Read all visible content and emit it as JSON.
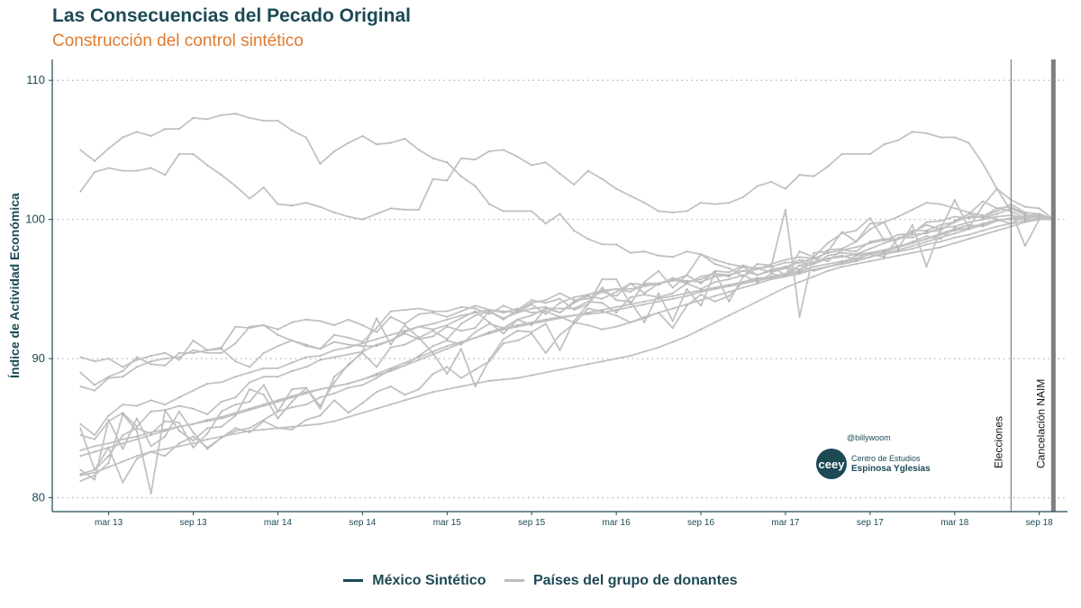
{
  "title": "Las Consecuencias del Pecado Original",
  "subtitle": "Construcción del control sintético",
  "handle": "@billywoom",
  "logo": {
    "mark": "ceey",
    "line1": "Centro de Estudios",
    "line2": "Espinosa Yglesias"
  },
  "legend": [
    {
      "label": "México Sintético",
      "color": "#1c4a55"
    },
    {
      "label": "Países del grupo de donantes",
      "color": "#bdbdbd"
    }
  ],
  "chart_data": {
    "type": "line",
    "ylabel": "Índice de Actividad Económica",
    "xlabel": "",
    "ylim": [
      79,
      111.5
    ],
    "yticks": [
      80,
      90,
      100,
      110
    ],
    "xrange": [
      "2012-11",
      "2018-11"
    ],
    "xticks": [
      "mar 13",
      "sep 13",
      "mar 14",
      "sep 14",
      "mar 15",
      "sep 15",
      "mar 16",
      "sep 16",
      "mar 17",
      "sep 17",
      "mar 18",
      "sep 18"
    ],
    "grid": "horizontal-dotted",
    "legend_position": "bottom",
    "x_start": "2013-01",
    "vlines": [
      {
        "label": "Elecciones",
        "x": "2018-07",
        "color": "#888888",
        "weight": "thin"
      },
      {
        "label": "Cancelación NAIM",
        "x": "2018-10",
        "color": "#7f7f7f",
        "weight": "thick"
      }
    ],
    "series": [
      {
        "group": "donor",
        "values": [
          105.0,
          104.2,
          105.1,
          105.9,
          106.3,
          106.0,
          106.5,
          106.5,
          107.3,
          107.2,
          107.5,
          107.6,
          107.3,
          107.1,
          107.1,
          106.4,
          105.9,
          104.0,
          104.9,
          105.5,
          106.0,
          105.4,
          105.5,
          105.8,
          105.0,
          104.4,
          104.1,
          103.1,
          102.4,
          101.1,
          100.6,
          100.6,
          100.6,
          99.7,
          100.4,
          99.2,
          98.6,
          98.2,
          98.2,
          97.6,
          97.7,
          97.4,
          97.3,
          97.7,
          97.5,
          97.1,
          96.8,
          96.6,
          96.5,
          96.2,
          96.5,
          97.1,
          96.9,
          97.8,
          97.9,
          98.4,
          99.3,
          99.8,
          100.2,
          100.7,
          101.2,
          101.1,
          100.8,
          100.5,
          100.3,
          100.0,
          100.0,
          100.0,
          100.0,
          100.0
        ]
      },
      {
        "group": "donor",
        "values": [
          102.0,
          103.4,
          103.7,
          103.5,
          103.5,
          103.7,
          103.2,
          104.7,
          104.7,
          103.9,
          103.2,
          102.4,
          101.5,
          102.3,
          101.1,
          101.0,
          101.2,
          100.9,
          100.5,
          100.2,
          100.0,
          100.4,
          100.8,
          100.7,
          100.7,
          102.9,
          102.8,
          104.4,
          104.3,
          104.9,
          105.0,
          104.5,
          103.9,
          104.1,
          103.3,
          102.5,
          103.5,
          102.9,
          102.2,
          101.7,
          101.2,
          100.6,
          100.5,
          100.6,
          101.2,
          101.1,
          101.2,
          101.6,
          102.4,
          102.7,
          102.2,
          103.2,
          103.1,
          103.8,
          104.7,
          104.7,
          104.7,
          105.4,
          105.7,
          106.3,
          106.2,
          105.9,
          105.9,
          105.5,
          104.0,
          102.2,
          101.4,
          100.9,
          100.8,
          100.0
        ]
      },
      {
        "group": "donor",
        "values": [
          90.1,
          89.8,
          90.0,
          89.4,
          89.9,
          90.2,
          90.4,
          89.9,
          91.3,
          90.6,
          90.8,
          92.3,
          92.2,
          92.4,
          92.1,
          92.6,
          92.8,
          92.7,
          92.4,
          92.8,
          92.4,
          91.9,
          93.0,
          92.5,
          93.2,
          93.3,
          93.0,
          93.4,
          93.8,
          93.5,
          93.4,
          93.3,
          93.9,
          93.2,
          94.0,
          94.4,
          94.6,
          94.9,
          95.0,
          95.0,
          95.2,
          95.4,
          95.6,
          95.6,
          95.5,
          95.9,
          96.0,
          96.3,
          96.0,
          96.3,
          96.5,
          96.4,
          96.9,
          97.2,
          97.3,
          97.5,
          97.6,
          97.8,
          98.1,
          98.3,
          98.6,
          99.0,
          99.3,
          99.6,
          99.5,
          99.9,
          100.1,
          100.2,
          100.4,
          100.0
        ]
      },
      {
        "group": "donor",
        "values": [
          88.0,
          87.7,
          88.6,
          88.7,
          89.4,
          89.8,
          90.0,
          90.1,
          90.6,
          90.4,
          90.4,
          91.1,
          92.3,
          92.4,
          91.7,
          91.3,
          91.0,
          90.7,
          91.7,
          91.5,
          91.2,
          92.2,
          93.4,
          93.5,
          93.6,
          93.4,
          93.4,
          93.7,
          93.6,
          93.2,
          93.8,
          93.4,
          94.0,
          94.2,
          94.7,
          94.2,
          94.3,
          94.8,
          95.0,
          94.8,
          95.4,
          95.4,
          95.7,
          95.4,
          95.9,
          96.1,
          96.0,
          96.3,
          96.5,
          96.6,
          96.9,
          96.9,
          97.2,
          97.0,
          97.8,
          97.7,
          98.4,
          98.6,
          98.6,
          99.1,
          99.6,
          99.3,
          99.8,
          100.4,
          100.1,
          100.4,
          100.8,
          100.3,
          100.3,
          100.0
        ]
      },
      {
        "group": "donor",
        "values": [
          89.0,
          88.1,
          88.7,
          89.1,
          90.1,
          89.6,
          89.5,
          90.4,
          90.4,
          90.6,
          90.7,
          89.8,
          89.4,
          90.4,
          90.9,
          91.3,
          90.9,
          90.7,
          91.2,
          91.0,
          90.9,
          90.9,
          91.3,
          91.8,
          91.4,
          91.6,
          92.3,
          92.0,
          92.2,
          93.4,
          92.9,
          93.3,
          93.6,
          93.7,
          93.3,
          94.1,
          94.6,
          94.8,
          94.5,
          95.4,
          95.3,
          95.3,
          95.8,
          95.5,
          95.7,
          96.1,
          95.9,
          96.6,
          96.0,
          96.4,
          96.6,
          96.9,
          96.8,
          97.4,
          97.6,
          97.5,
          97.9,
          98.3,
          98.6,
          98.9,
          99.0,
          99.4,
          99.5,
          99.8,
          100.0,
          100.2,
          100.3,
          100.1,
          100.2,
          100.0
        ]
      },
      {
        "group": "donor",
        "values": [
          85.3,
          84.5,
          85.9,
          86.7,
          86.6,
          87.0,
          86.7,
          87.2,
          87.7,
          88.2,
          88.3,
          88.7,
          89.0,
          89.3,
          89.3,
          89.7,
          90.1,
          90.2,
          90.6,
          90.8,
          91.1,
          91.4,
          91.7,
          92.0,
          92.3,
          92.5,
          92.8,
          93.1,
          93.3,
          93.5,
          93.3,
          93.6,
          93.3,
          93.4,
          93.0,
          92.6,
          92.4,
          92.1,
          92.3,
          92.6,
          92.9,
          93.3,
          93.6,
          93.9,
          94.2,
          94.5,
          94.8,
          95.1,
          95.4,
          95.7,
          95.9,
          96.1,
          96.4,
          96.6,
          96.8,
          97.0,
          97.3,
          97.5,
          97.7,
          97.9,
          98.2,
          98.4,
          98.7,
          98.9,
          99.2,
          99.5,
          99.7,
          99.9,
          100.1,
          100.0
        ]
      },
      {
        "group": "donor",
        "values": [
          84.5,
          84.2,
          85.5,
          86.1,
          85.1,
          86.2,
          86.3,
          86.6,
          86.4,
          86.0,
          86.9,
          87.2,
          88.3,
          88.7,
          88.7,
          89.1,
          89.4,
          89.9,
          90.1,
          90.3,
          90.5,
          91.0,
          91.3,
          91.9,
          92.3,
          92.1,
          92.4,
          92.9,
          93.4,
          92.6,
          91.8,
          92.8,
          92.4,
          93.6,
          93.6,
          93.6,
          94.1,
          94.0,
          93.3,
          94.4,
          94.6,
          94.4,
          94.7,
          95.4,
          95.0,
          95.5,
          95.7,
          96.0,
          95.5,
          96.1,
          95.9,
          96.7,
          96.8,
          97.2,
          97.4,
          97.1,
          97.6,
          97.8,
          98.0,
          98.4,
          98.8,
          98.6,
          99.4,
          99.3,
          99.7,
          100.0,
          99.7,
          100.3,
          100.2,
          100.0
        ]
      },
      {
        "group": "donor",
        "values": [
          83.4,
          83.7,
          83.9,
          84.2,
          84.4,
          84.7,
          84.9,
          85.1,
          85.3,
          85.6,
          85.8,
          86.1,
          86.4,
          86.7,
          87.0,
          87.3,
          87.6,
          87.8,
          88.0,
          88.2,
          88.5,
          88.8,
          89.1,
          89.5,
          89.9,
          90.3,
          90.7,
          91.1,
          91.5,
          91.9,
          92.2,
          92.4,
          92.6,
          92.8,
          93.0,
          93.1,
          93.2,
          93.3,
          93.5,
          93.7,
          93.9,
          94.1,
          94.3,
          94.5,
          94.8,
          95.0,
          95.2,
          95.4,
          95.6,
          95.8,
          96.0,
          96.2,
          96.4,
          96.6,
          96.9,
          97.1,
          97.3,
          97.6,
          97.8,
          98.1,
          98.4,
          98.7,
          99.0,
          99.3,
          99.6,
          99.9,
          100.1,
          100.0,
          100.0,
          100.0
        ]
      },
      {
        "group": "donor",
        "values": [
          83.0,
          83.3,
          83.6,
          83.9,
          84.2,
          84.5,
          84.8,
          85.1,
          85.3,
          85.5,
          85.7,
          86.0,
          86.3,
          86.6,
          86.9,
          87.2,
          87.5,
          87.8,
          88.0,
          88.2,
          88.5,
          88.9,
          89.3,
          89.7,
          90.1,
          90.5,
          90.9,
          91.2,
          91.5,
          91.8,
          92.1,
          92.3,
          92.5,
          92.7,
          92.9,
          93.1,
          93.3,
          93.5,
          93.7,
          93.9,
          94.1,
          94.3,
          94.5,
          94.7,
          94.9,
          95.1,
          95.3,
          95.5,
          95.7,
          95.9,
          96.1,
          96.3,
          96.6,
          96.8,
          97.0,
          97.2,
          97.5,
          97.7,
          98.0,
          98.3,
          98.6,
          98.9,
          99.2,
          99.4,
          99.7,
          99.9,
          100.1,
          100.0,
          100.0,
          100.0
        ]
      },
      {
        "group": "donor",
        "values": [
          81.7,
          82.0,
          83.6,
          81.1,
          82.8,
          83.3,
          83.0,
          83.9,
          84.4,
          83.6,
          84.3,
          84.8,
          85.0,
          85.6,
          86.2,
          86.5,
          86.7,
          87.2,
          87.5,
          87.9,
          88.1,
          88.6,
          89.2,
          89.5,
          90.2,
          90.9,
          91.3,
          91.0,
          91.9,
          92.5,
          92.2,
          92.8,
          93.1,
          93.6,
          93.3,
          94.0,
          94.5,
          94.3,
          94.8,
          95.4,
          94.7,
          95.4,
          95.6,
          96.0,
          95.4,
          96.3,
          96.2,
          96.7,
          96.4,
          96.8,
          97.1,
          97.3,
          97.2,
          97.6,
          97.8,
          98.0,
          98.3,
          98.5,
          98.6,
          99.2,
          99.2,
          99.6,
          99.8,
          100.2,
          100.2,
          100.8,
          100.6,
          100.1,
          100.4,
          100.0
        ]
      },
      {
        "group": "donor",
        "values": [
          81.2,
          81.6,
          82.5,
          86.0,
          84.8,
          80.3,
          86.3,
          84.8,
          84.1,
          85.0,
          85.1,
          85.9,
          87.8,
          87.4,
          85.7,
          86.9,
          87.9,
          86.4,
          88.7,
          89.5,
          90.5,
          92.9,
          91.0,
          92.4,
          91.5,
          90.4,
          88.9,
          90.7,
          88.0,
          89.9,
          91.4,
          92.0,
          91.9,
          92.5,
          90.6,
          92.7,
          93.9,
          95.1,
          94.2,
          94.1,
          92.6,
          94.7,
          92.7,
          95.0,
          93.8,
          96.2,
          94.1,
          95.9,
          96.8,
          96.7,
          100.7,
          93.0,
          97.6,
          97.7,
          99.1,
          98.4,
          99.7,
          99.8,
          97.9,
          99.6,
          96.6,
          99.3,
          101.4,
          99.4,
          101.0,
          102.2,
          100.6,
          98.1,
          100.0,
          100.0
        ]
      },
      {
        "group": "donor",
        "values": [
          82.0,
          81.3,
          85.6,
          83.5,
          85.7,
          83.7,
          84.4,
          86.2,
          84.7,
          83.5,
          84.3,
          85.0,
          84.7,
          85.5,
          85.0,
          84.9,
          85.6,
          85.9,
          87.0,
          86.1,
          86.8,
          87.6,
          88.0,
          87.4,
          87.8,
          88.9,
          89.4,
          88.6,
          89.2,
          89.8,
          91.1,
          91.3,
          91.8,
          90.4,
          91.7,
          92.5,
          93.6,
          93.4,
          93.1,
          92.6,
          93.0,
          93.3,
          92.2,
          93.8,
          94.6,
          94.1,
          94.5,
          95.5,
          95.8,
          95.8,
          96.1,
          96.7,
          96.3,
          96.6,
          96.8,
          97.4,
          97.5,
          97.3,
          98.7,
          98.7,
          99.1,
          99.2,
          99.9,
          100.4,
          101.3,
          100.8,
          100.9,
          100.4,
          100.0,
          100.0
        ]
      },
      {
        "group": "donor",
        "values": [
          81.6,
          81.8,
          82.2,
          82.6,
          83.0,
          83.3,
          83.5,
          83.7,
          83.9,
          84.2,
          84.4,
          84.6,
          84.8,
          84.9,
          85.0,
          85.1,
          85.2,
          85.3,
          85.5,
          85.8,
          86.1,
          86.4,
          86.7,
          87.0,
          87.3,
          87.6,
          87.8,
          88.0,
          88.2,
          88.4,
          88.5,
          88.6,
          88.8,
          89.0,
          89.2,
          89.4,
          89.6,
          89.8,
          90.0,
          90.2,
          90.5,
          90.8,
          91.2,
          91.6,
          92.1,
          92.6,
          93.1,
          93.6,
          94.1,
          94.6,
          95.1,
          95.5,
          95.9,
          96.3,
          96.6,
          96.8,
          97.0,
          97.2,
          97.4,
          97.6,
          97.8,
          98.0,
          98.3,
          98.6,
          98.9,
          99.2,
          99.5,
          99.8,
          100.0,
          100.0
        ]
      },
      {
        "group": "donor",
        "values": [
          85.0,
          82.0,
          83.0,
          84.5,
          85.0,
          84.6,
          85.5,
          85.4,
          83.6,
          84.6,
          86.2,
          86.7,
          86.9,
          88.1,
          86.2,
          87.8,
          87.9,
          86.6,
          88.3,
          89.6,
          90.4,
          89.4,
          90.8,
          91.0,
          91.5,
          92.0,
          91.4,
          92.5,
          93.1,
          93.4,
          92.8,
          93.5,
          94.2,
          94.0,
          94.3,
          93.5,
          93.9,
          95.7,
          95.7,
          93.9,
          95.5,
          96.3,
          95.1,
          96.0,
          97.5,
          96.8,
          96.5,
          95.9,
          96.5,
          96.6,
          96.0,
          97.7,
          97.3,
          98.3,
          99.0,
          99.2,
          100.1,
          98.5,
          98.9,
          99.0,
          99.8,
          99.9,
          100.2,
          100.1,
          100.2,
          100.6,
          101.1,
          100.5,
          100.4,
          100.0
        ]
      }
    ]
  }
}
